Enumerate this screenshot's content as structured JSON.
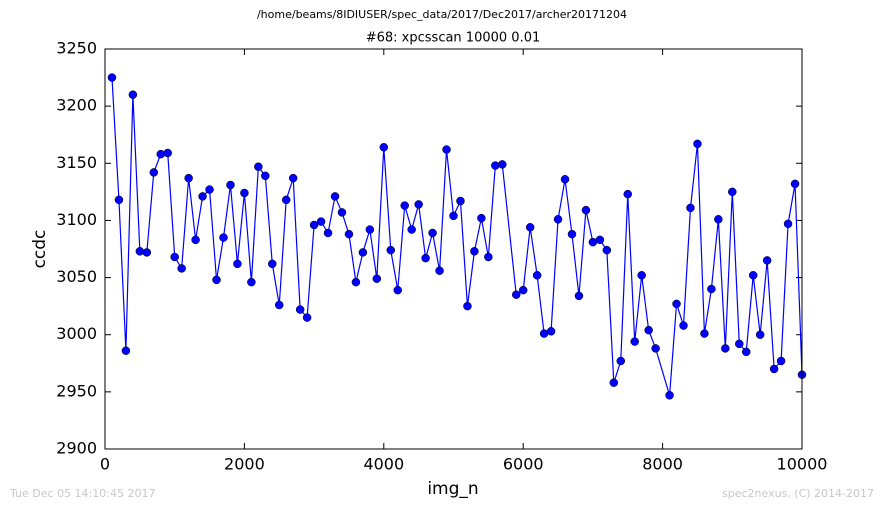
{
  "chart_data": {
    "type": "line",
    "suptitle": "/home/beams/8IDIUSER/spec_data/2017/Dec2017/archer20171204",
    "title": "#68: xpcsscan 10000 0.01",
    "xlabel": "img_n",
    "ylabel": "ccdc",
    "xlim": [
      0,
      10000
    ],
    "xticks": [
      0,
      2000,
      4000,
      6000,
      8000,
      10000
    ],
    "ylim": [
      2900,
      3250
    ],
    "yticks": [
      2900,
      2950,
      3000,
      3050,
      3100,
      3150,
      3200,
      3250
    ],
    "grid": false,
    "x": [
      100,
      200,
      300,
      400,
      500,
      600,
      700,
      800,
      900,
      1000,
      1100,
      1200,
      1300,
      1400,
      1500,
      1600,
      1700,
      1800,
      1900,
      2000,
      2100,
      2200,
      2300,
      2400,
      2500,
      2600,
      2700,
      2800,
      2900,
      3000,
      3100,
      3200,
      3300,
      3400,
      3500,
      3600,
      3700,
      3800,
      3900,
      4000,
      4100,
      4200,
      4300,
      4400,
      4500,
      4600,
      4700,
      4800,
      4900,
      5000,
      5100,
      5200,
      5300,
      5400,
      5500,
      5600,
      5700,
      5900,
      6000,
      6100,
      6200,
      6300,
      6400,
      6500,
      6600,
      6700,
      6800,
      6900,
      7000,
      7100,
      7200,
      7300,
      7400,
      7500,
      7600,
      7700,
      7800,
      7900,
      8100,
      8200,
      8300,
      8400,
      8500,
      8600,
      8700,
      8800,
      8900,
      9000,
      9100,
      9200,
      9300,
      9400,
      9500,
      9600,
      9700,
      9800,
      9900,
      10000
    ],
    "series": [
      {
        "name": "ccdc",
        "color": "#0000ff",
        "values": [
          3225,
          3118,
          2986,
          3210,
          3073,
          3072,
          3142,
          3158,
          3159,
          3068,
          3058,
          3137,
          3083,
          3121,
          3127,
          3048,
          3085,
          3131,
          3062,
          3124,
          3046,
          3147,
          3139,
          3062,
          3026,
          3118,
          3137,
          3022,
          3015,
          3096,
          3099,
          3089,
          3121,
          3107,
          3088,
          3046,
          3072,
          3092,
          3049,
          3164,
          3074,
          3039,
          3113,
          3092,
          3114,
          3067,
          3089,
          3056,
          3162,
          3104,
          3117,
          3025,
          3073,
          3102,
          3068,
          3148,
          3149,
          3035,
          3039,
          3094,
          3052,
          3001,
          3003,
          3101,
          3136,
          3088,
          3034,
          3109,
          3081,
          3083,
          3074,
          2958,
          2977,
          3123,
          2994,
          3052,
          3004,
          2988,
          2947,
          3027,
          3008,
          3111,
          3167,
          3001,
          3040,
          3101,
          2988,
          3125,
          2992,
          2985,
          3052,
          3000,
          3065,
          2970,
          2977,
          3097,
          3132,
          2965
        ]
      }
    ]
  },
  "footer": {
    "timestamp": "Tue Dec 05 14:10:45 2017",
    "credit": "spec2nexus, (C) 2014-2017"
  }
}
